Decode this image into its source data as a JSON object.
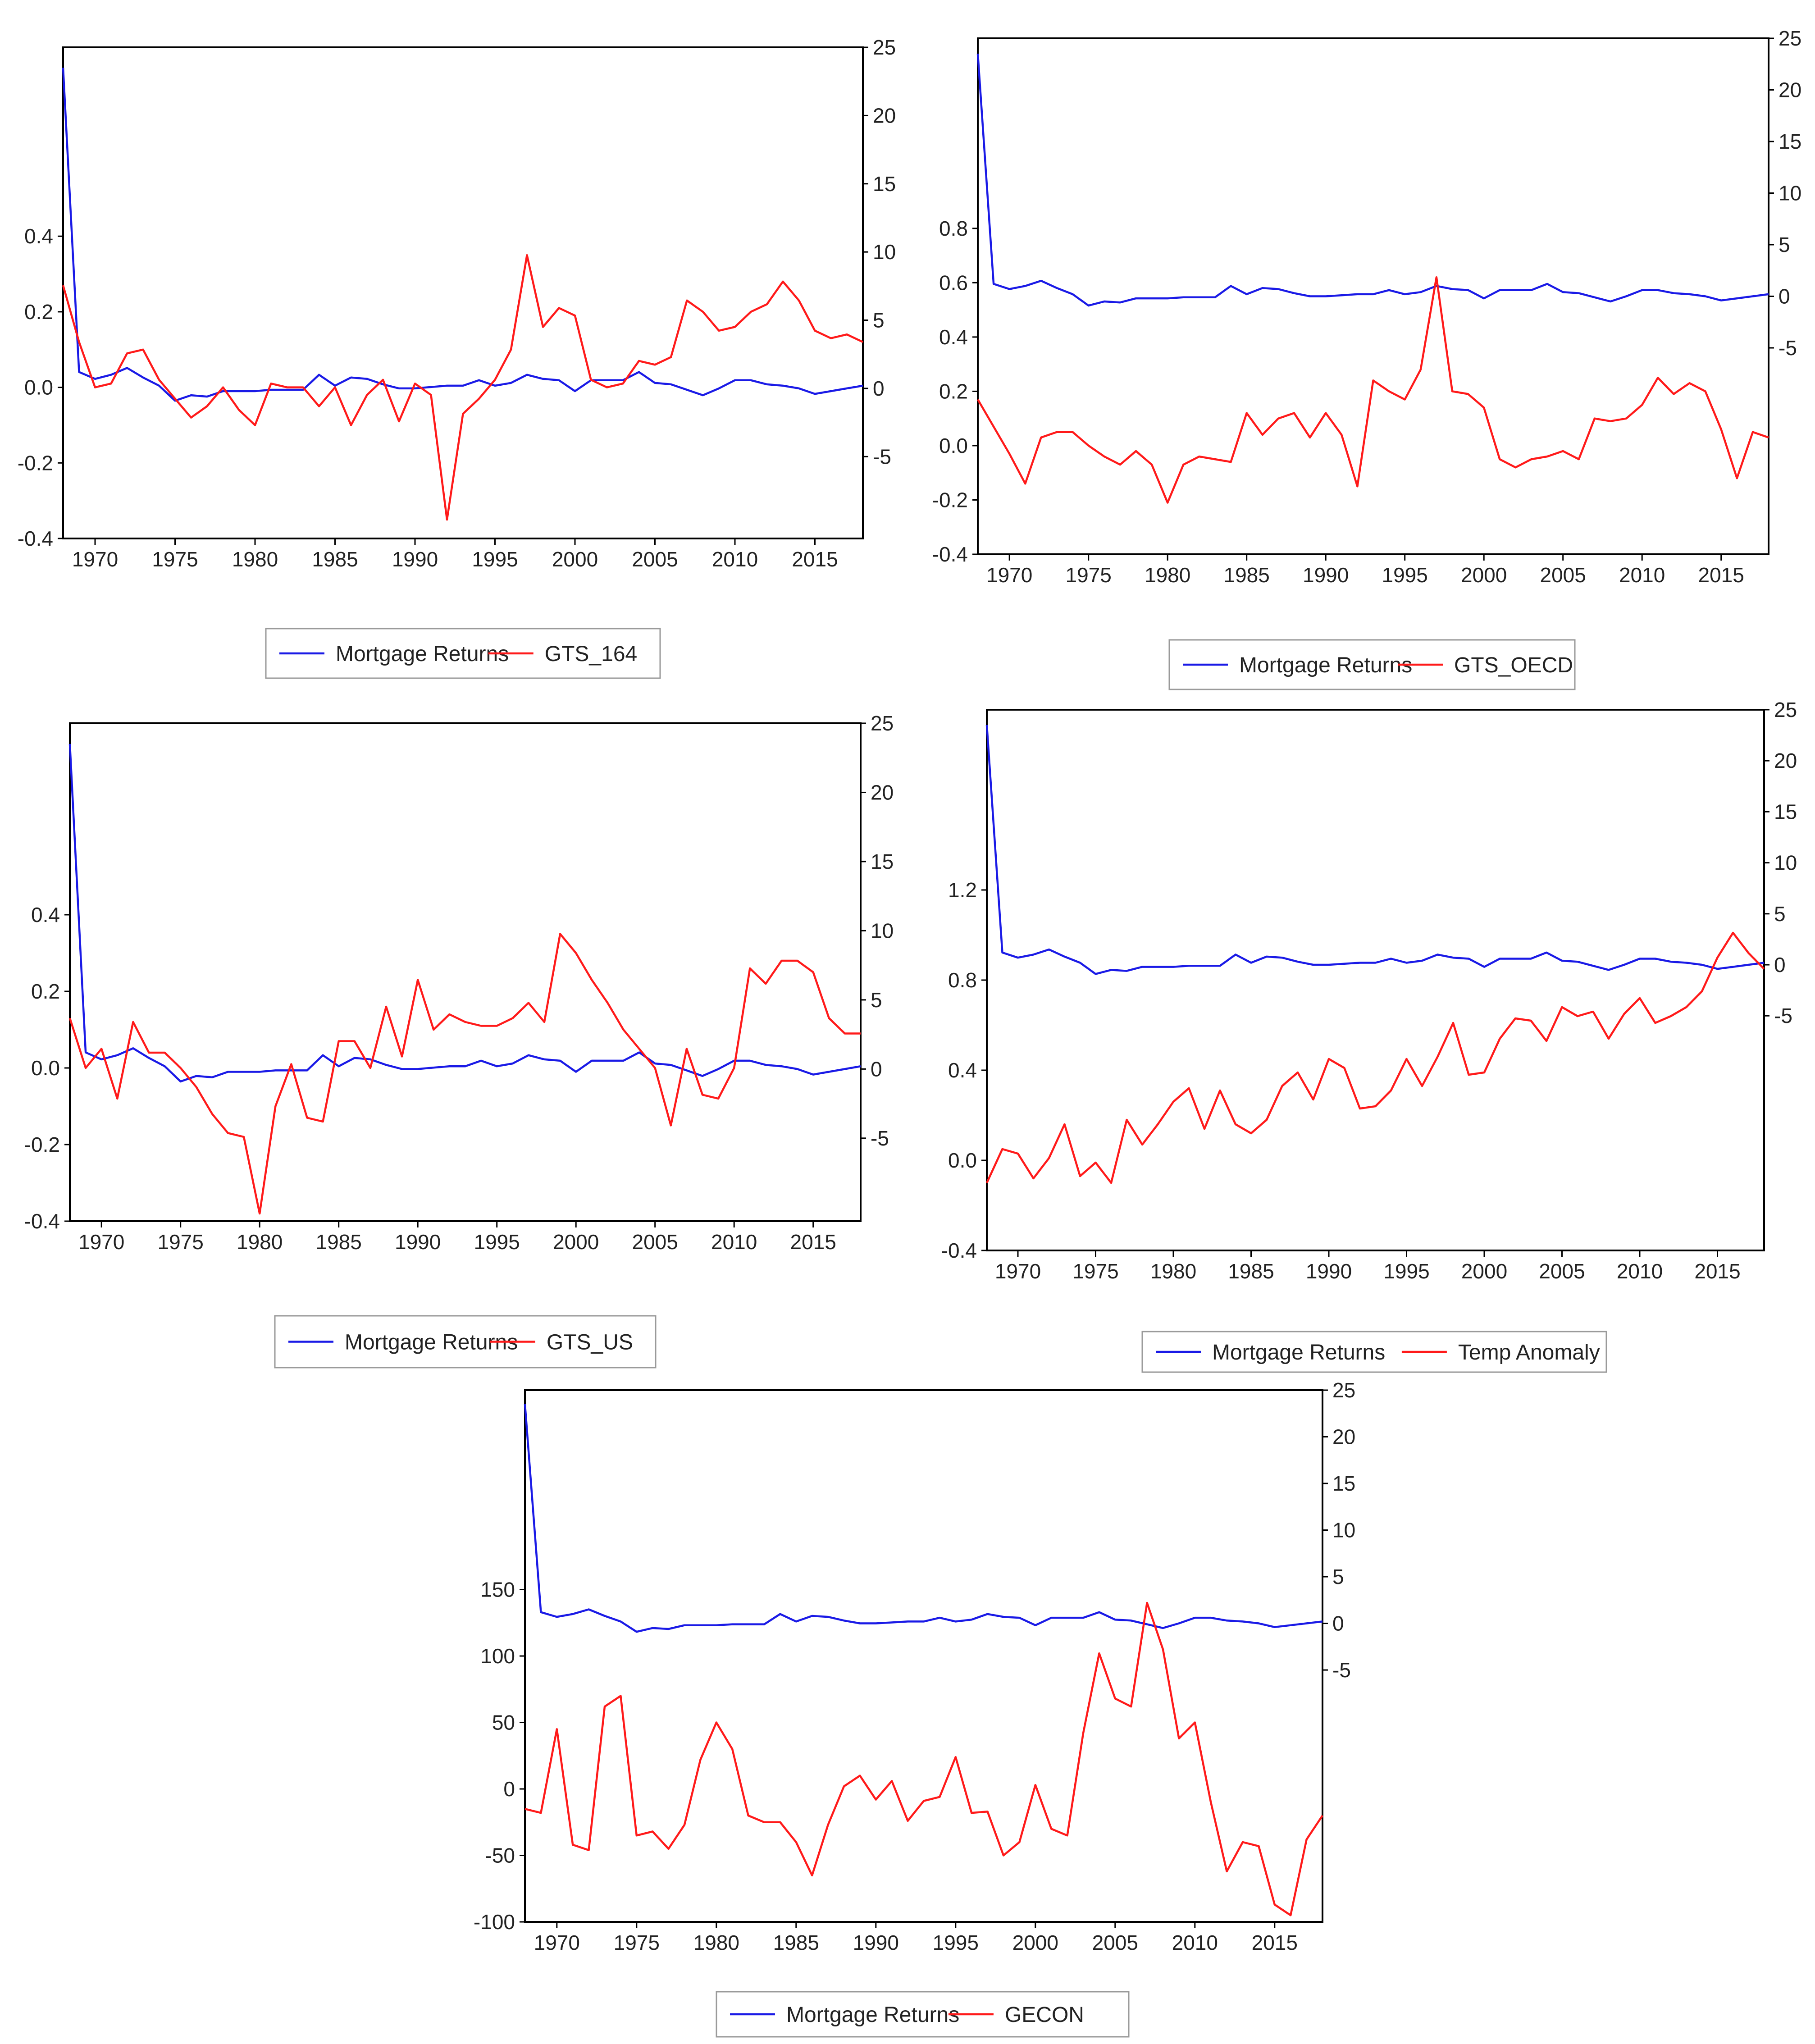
{
  "colors": {
    "primary_series": "#1a1ae6",
    "secondary_series": "#ff1a1a",
    "frame": "#000000"
  },
  "chart_data": [
    {
      "type": "line",
      "x": [
        1968,
        1969,
        1970,
        1971,
        1972,
        1973,
        1974,
        1975,
        1976,
        1977,
        1978,
        1979,
        1980,
        1981,
        1982,
        1983,
        1984,
        1985,
        1986,
        1987,
        1988,
        1989,
        1990,
        1991,
        1992,
        1993,
        1994,
        1995,
        1996,
        1997,
        1998,
        1999,
        2000,
        2001,
        2002,
        2003,
        2004,
        2005,
        2006,
        2007,
        2008,
        2009,
        2010,
        2011,
        2012,
        2013,
        2014,
        2015,
        2016,
        2017,
        2018
      ],
      "xticks": [
        "1970",
        "1975",
        "1980",
        "1985",
        "1990",
        "1995",
        "2000",
        "2005",
        "2010",
        "2015"
      ],
      "left_axis": {
        "range": [
          -0.4,
          0.9
        ],
        "ticks": [
          "0.4",
          "0.2",
          "0.0",
          "-0.2",
          "-0.4"
        ]
      },
      "right_axis": {
        "range": [
          -11,
          25
        ],
        "ticks": [
          "25",
          "20",
          "15",
          "10",
          "5",
          "0",
          "-5"
        ]
      },
      "series": [
        {
          "name": "Mortgage Returns",
          "axis": "right",
          "color": "#1a1ae6",
          "values": [
            23.5,
            1.2,
            0.7,
            1.0,
            1.5,
            0.8,
            0.2,
            -0.9,
            -0.5,
            -0.6,
            -0.2,
            -0.2,
            -0.2,
            -0.1,
            -0.1,
            -0.1,
            1.0,
            0.2,
            0.8,
            0.7,
            0.3,
            0.0,
            0.0,
            0.1,
            0.2,
            0.2,
            0.6,
            0.2,
            0.4,
            1.0,
            0.7,
            0.6,
            -0.2,
            0.6,
            0.6,
            0.6,
            1.2,
            0.4,
            0.3,
            -0.1,
            -0.5,
            0.0,
            0.6,
            0.6,
            0.3,
            0.2,
            0.0,
            -0.4,
            -0.2,
            0.0,
            0.2
          ]
        },
        {
          "name": "GTS_164",
          "axis": "left",
          "color": "#ff1a1a",
          "values": [
            0.27,
            0.12,
            0.0,
            0.01,
            0.09,
            0.1,
            0.02,
            -0.03,
            -0.08,
            -0.05,
            0.0,
            -0.06,
            -0.1,
            0.01,
            0.0,
            0.0,
            -0.05,
            0.0,
            -0.1,
            -0.02,
            0.02,
            -0.09,
            0.01,
            -0.02,
            -0.35,
            -0.07,
            -0.03,
            0.02,
            0.1,
            0.35,
            0.16,
            0.21,
            0.19,
            0.02,
            0.0,
            0.01,
            0.07,
            0.06,
            0.08,
            0.23,
            0.2,
            0.15,
            0.16,
            0.2,
            0.22,
            0.28,
            0.23,
            0.15,
            0.13,
            0.14,
            0.12
          ]
        }
      ],
      "legend": [
        "Mortgage Returns",
        "GTS_164"
      ]
    },
    {
      "type": "line",
      "x": [
        1968,
        1969,
        1970,
        1971,
        1972,
        1973,
        1974,
        1975,
        1976,
        1977,
        1978,
        1979,
        1980,
        1981,
        1982,
        1983,
        1984,
        1985,
        1986,
        1987,
        1988,
        1989,
        1990,
        1991,
        1992,
        1993,
        1994,
        1995,
        1996,
        1997,
        1998,
        1999,
        2000,
        2001,
        2002,
        2003,
        2004,
        2005,
        2006,
        2007,
        2008,
        2009,
        2010,
        2011,
        2012,
        2013,
        2014,
        2015,
        2016,
        2017,
        2018
      ],
      "xticks": [
        "1970",
        "1975",
        "1980",
        "1985",
        "1990",
        "1995",
        "2000",
        "2005",
        "2010",
        "2015"
      ],
      "left_axis": {
        "range": [
          -0.4,
          1.5
        ],
        "ticks": [
          "0.8",
          "0.6",
          "0.4",
          "0.2",
          "0.0",
          "-0.2",
          "-0.4"
        ]
      },
      "right_axis": {
        "range": [
          -25,
          25
        ],
        "ticks": [
          "25",
          "20",
          "15",
          "10",
          "5",
          "0",
          "-5"
        ]
      },
      "series": [
        {
          "name": "Mortgage Returns",
          "axis": "right",
          "color": "#1a1ae6",
          "values": [
            23.5,
            1.2,
            0.7,
            1.0,
            1.5,
            0.8,
            0.2,
            -0.9,
            -0.5,
            -0.6,
            -0.2,
            -0.2,
            -0.2,
            -0.1,
            -0.1,
            -0.1,
            1.0,
            0.2,
            0.8,
            0.7,
            0.3,
            0.0,
            0.0,
            0.1,
            0.2,
            0.2,
            0.6,
            0.2,
            0.4,
            1.0,
            0.7,
            0.6,
            -0.2,
            0.6,
            0.6,
            0.6,
            1.2,
            0.4,
            0.3,
            -0.1,
            -0.5,
            0.0,
            0.6,
            0.6,
            0.3,
            0.2,
            0.0,
            -0.4,
            -0.2,
            0.0,
            0.2
          ]
        },
        {
          "name": "GTS_OECD",
          "axis": "left",
          "color": "#ff1a1a",
          "values": [
            0.17,
            0.07,
            -0.03,
            -0.14,
            0.03,
            0.05,
            0.05,
            0.0,
            -0.04,
            -0.07,
            -0.02,
            -0.07,
            -0.21,
            -0.07,
            -0.04,
            -0.05,
            -0.06,
            0.12,
            0.04,
            0.1,
            0.12,
            0.03,
            0.12,
            0.04,
            -0.15,
            0.24,
            0.2,
            0.17,
            0.28,
            0.62,
            0.2,
            0.19,
            0.14,
            -0.05,
            -0.08,
            -0.05,
            -0.04,
            -0.02,
            -0.05,
            0.1,
            0.09,
            0.1,
            0.15,
            0.25,
            0.19,
            0.23,
            0.2,
            0.06,
            -0.12,
            0.05,
            0.03
          ]
        }
      ],
      "legend": [
        "Mortgage Returns",
        "GTS_OECD"
      ]
    },
    {
      "type": "line",
      "x": [
        1968,
        1969,
        1970,
        1971,
        1972,
        1973,
        1974,
        1975,
        1976,
        1977,
        1978,
        1979,
        1980,
        1981,
        1982,
        1983,
        1984,
        1985,
        1986,
        1987,
        1988,
        1989,
        1990,
        1991,
        1992,
        1993,
        1994,
        1995,
        1996,
        1997,
        1998,
        1999,
        2000,
        2001,
        2002,
        2003,
        2004,
        2005,
        2006,
        2007,
        2008,
        2009,
        2010,
        2011,
        2012,
        2013,
        2014,
        2015,
        2016,
        2017,
        2018
      ],
      "xticks": [
        "1970",
        "1975",
        "1980",
        "1985",
        "1990",
        "1995",
        "2000",
        "2005",
        "2010",
        "2015"
      ],
      "left_axis": {
        "range": [
          -0.4,
          0.9
        ],
        "ticks": [
          "0.4",
          "0.2",
          "0.0",
          "-0.2",
          "-0.4"
        ]
      },
      "right_axis": {
        "range": [
          -11,
          25
        ],
        "ticks": [
          "25",
          "20",
          "15",
          "10",
          "5",
          "0",
          "-5"
        ]
      },
      "series": [
        {
          "name": "Mortgage Returns",
          "axis": "right",
          "color": "#1a1ae6",
          "values": [
            23.5,
            1.2,
            0.7,
            1.0,
            1.5,
            0.8,
            0.2,
            -0.9,
            -0.5,
            -0.6,
            -0.2,
            -0.2,
            -0.2,
            -0.1,
            -0.1,
            -0.1,
            1.0,
            0.2,
            0.8,
            0.7,
            0.3,
            0.0,
            0.0,
            0.1,
            0.2,
            0.2,
            0.6,
            0.2,
            0.4,
            1.0,
            0.7,
            0.6,
            -0.2,
            0.6,
            0.6,
            0.6,
            1.2,
            0.4,
            0.3,
            -0.1,
            -0.5,
            0.0,
            0.6,
            0.6,
            0.3,
            0.2,
            0.0,
            -0.4,
            -0.2,
            0.0,
            0.2
          ]
        },
        {
          "name": "GTS_US",
          "axis": "left",
          "color": "#ff1a1a",
          "values": [
            0.13,
            0.0,
            0.05,
            -0.08,
            0.12,
            0.04,
            0.04,
            0.0,
            -0.05,
            -0.12,
            -0.17,
            -0.18,
            -0.38,
            -0.1,
            0.01,
            -0.13,
            -0.14,
            0.07,
            0.07,
            0.0,
            0.16,
            0.03,
            0.23,
            0.1,
            0.14,
            0.12,
            0.11,
            0.11,
            0.13,
            0.17,
            0.12,
            0.35,
            0.3,
            0.23,
            0.17,
            0.1,
            0.05,
            0.0,
            -0.15,
            0.05,
            -0.07,
            -0.08,
            0.0,
            0.26,
            0.22,
            0.28,
            0.28,
            0.25,
            0.13,
            0.09,
            0.09
          ]
        }
      ],
      "legend": [
        "Mortgage Returns",
        "GTS_US"
      ]
    },
    {
      "type": "line",
      "x": [
        1968,
        1969,
        1970,
        1971,
        1972,
        1973,
        1974,
        1975,
        1976,
        1977,
        1978,
        1979,
        1980,
        1981,
        1982,
        1983,
        1984,
        1985,
        1986,
        1987,
        1988,
        1989,
        1990,
        1991,
        1992,
        1993,
        1994,
        1995,
        1996,
        1997,
        1998,
        1999,
        2000,
        2001,
        2002,
        2003,
        2004,
        2005,
        2006,
        2007,
        2008,
        2009,
        2010,
        2011,
        2012,
        2013,
        2014,
        2015,
        2016,
        2017,
        2018
      ],
      "xticks": [
        "1970",
        "1975",
        "1980",
        "1985",
        "1990",
        "1995",
        "2000",
        "2005",
        "2010",
        "2015"
      ],
      "left_axis": {
        "range": [
          -0.4,
          2.0
        ],
        "ticks": [
          "1.2",
          "0.8",
          "0.4",
          "0.0",
          "-0.4"
        ]
      },
      "right_axis": {
        "range": [
          -28,
          25
        ],
        "ticks": [
          "25",
          "20",
          "15",
          "10",
          "5",
          "0",
          "-5"
        ]
      },
      "series": [
        {
          "name": "Mortgage Returns",
          "axis": "right",
          "color": "#1a1ae6",
          "values": [
            23.5,
            1.2,
            0.7,
            1.0,
            1.5,
            0.8,
            0.2,
            -0.9,
            -0.5,
            -0.6,
            -0.2,
            -0.2,
            -0.2,
            -0.1,
            -0.1,
            -0.1,
            1.0,
            0.2,
            0.8,
            0.7,
            0.3,
            0.0,
            0.0,
            0.1,
            0.2,
            0.2,
            0.6,
            0.2,
            0.4,
            1.0,
            0.7,
            0.6,
            -0.2,
            0.6,
            0.6,
            0.6,
            1.2,
            0.4,
            0.3,
            -0.1,
            -0.5,
            0.0,
            0.6,
            0.6,
            0.3,
            0.2,
            0.0,
            -0.4,
            -0.2,
            0.0,
            0.2
          ]
        },
        {
          "name": "Temp Anomaly",
          "axis": "left",
          "color": "#ff1a1a",
          "values": [
            -0.1,
            0.05,
            0.03,
            -0.08,
            0.01,
            0.16,
            -0.07,
            -0.01,
            -0.1,
            0.18,
            0.07,
            0.16,
            0.26,
            0.32,
            0.14,
            0.31,
            0.16,
            0.12,
            0.18,
            0.33,
            0.39,
            0.27,
            0.45,
            0.41,
            0.23,
            0.24,
            0.31,
            0.45,
            0.33,
            0.46,
            0.61,
            0.38,
            0.39,
            0.54,
            0.63,
            0.62,
            0.53,
            0.68,
            0.64,
            0.66,
            0.54,
            0.65,
            0.72,
            0.61,
            0.64,
            0.68,
            0.75,
            0.9,
            1.01,
            0.92,
            0.85
          ]
        }
      ],
      "legend": [
        "Mortgage Returns",
        "Temp Anomaly"
      ]
    },
    {
      "type": "line",
      "x": [
        1968,
        1969,
        1970,
        1971,
        1972,
        1973,
        1974,
        1975,
        1976,
        1977,
        1978,
        1979,
        1980,
        1981,
        1982,
        1983,
        1984,
        1985,
        1986,
        1987,
        1988,
        1989,
        1990,
        1991,
        1992,
        1993,
        1994,
        1995,
        1996,
        1997,
        1998,
        1999,
        2000,
        2001,
        2002,
        2003,
        2004,
        2005,
        2006,
        2007,
        2008,
        2009,
        2010,
        2011,
        2012,
        2013,
        2014,
        2015,
        2016,
        2017,
        2018
      ],
      "xticks": [
        "1970",
        "1975",
        "1980",
        "1985",
        "1990",
        "1995",
        "2000",
        "2005",
        "2010",
        "2015"
      ],
      "left_axis": {
        "range": [
          -100,
          300
        ],
        "ticks": [
          "150",
          "100",
          "50",
          "0",
          "-50",
          "-100"
        ]
      },
      "right_axis": {
        "range": [
          -32,
          25
        ],
        "ticks": [
          "25",
          "20",
          "15",
          "10",
          "5",
          "0",
          "-5"
        ]
      },
      "series": [
        {
          "name": "Mortgage Returns",
          "axis": "right",
          "color": "#1a1ae6",
          "values": [
            23.5,
            1.2,
            0.7,
            1.0,
            1.5,
            0.8,
            0.2,
            -0.9,
            -0.5,
            -0.6,
            -0.2,
            -0.2,
            -0.2,
            -0.1,
            -0.1,
            -0.1,
            1.0,
            0.2,
            0.8,
            0.7,
            0.3,
            0.0,
            0.0,
            0.1,
            0.2,
            0.2,
            0.6,
            0.2,
            0.4,
            1.0,
            0.7,
            0.6,
            -0.2,
            0.6,
            0.6,
            0.6,
            1.2,
            0.4,
            0.3,
            -0.1,
            -0.5,
            0.0,
            0.6,
            0.6,
            0.3,
            0.2,
            0.0,
            -0.4,
            -0.2,
            0.0,
            0.2
          ]
        },
        {
          "name": "GECON",
          "axis": "left",
          "color": "#ff1a1a",
          "values": [
            -15,
            -18,
            45,
            -42,
            -46,
            62,
            70,
            -35,
            -32,
            -45,
            -27,
            22,
            50,
            30,
            -20,
            -25,
            -25,
            -40,
            -65,
            -27,
            2,
            10,
            -8,
            6,
            -24,
            -9,
            -6,
            24,
            -18,
            -17,
            -50,
            -40,
            3,
            -30,
            -35,
            42,
            102,
            68,
            62,
            140,
            105,
            38,
            50,
            -10,
            -62,
            -40,
            -43,
            -87,
            -95,
            -38,
            -20
          ]
        }
      ],
      "legend": [
        "Mortgage Returns",
        "GECON"
      ]
    }
  ]
}
